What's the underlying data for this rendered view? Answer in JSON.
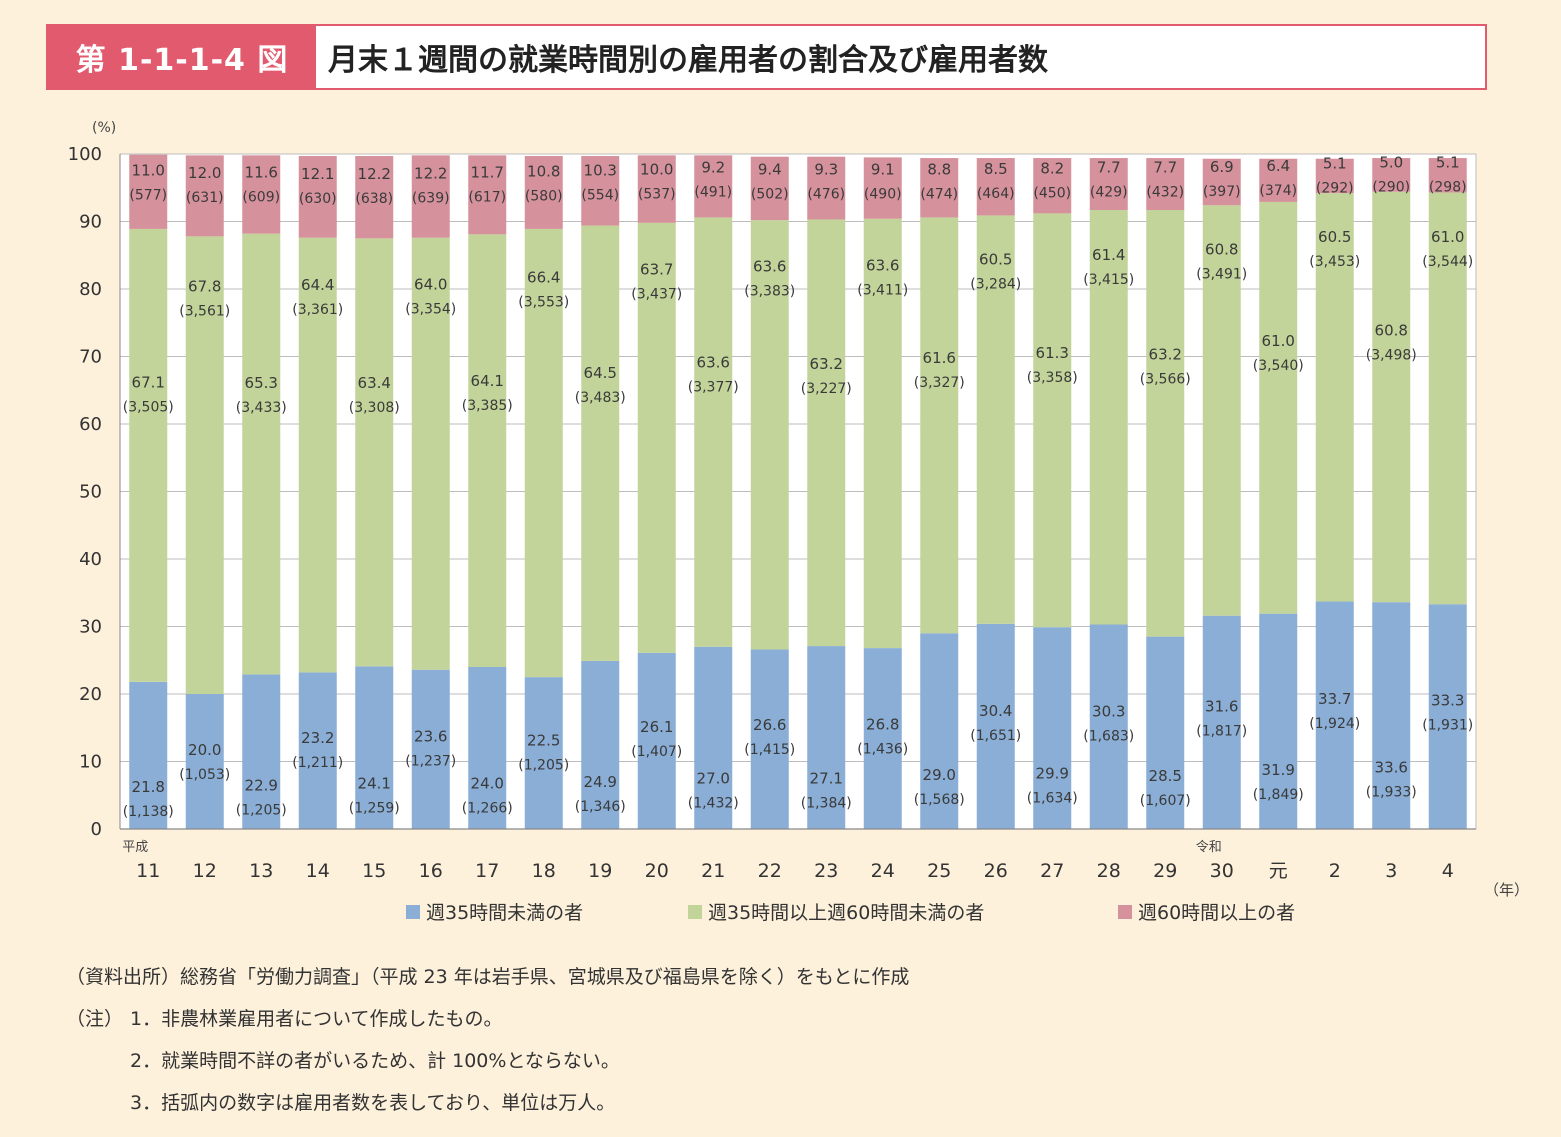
{
  "header": {
    "figure_label": "第 1-1-1-4 図",
    "title": "月末１週間の就業時間別の雇用者の割合及び雇用者数"
  },
  "colors": {
    "under35": "#8aaed6",
    "mid": "#c3d49a",
    "over60": "#d6929c",
    "accent": "#e25a6e"
  },
  "chart_data": {
    "type": "bar",
    "stacked": true,
    "y_unit_label": "(%)",
    "x_unit_label": "（年）",
    "ylim": [
      0,
      100
    ],
    "yticks": [
      0,
      10,
      20,
      30,
      40,
      50,
      60,
      70,
      80,
      90,
      100
    ],
    "era_labels": [
      {
        "at_category": "11",
        "text": "平成"
      },
      {
        "at_category": "30",
        "text": "令和"
      }
    ],
    "categories": [
      "11",
      "12",
      "13",
      "14",
      "15",
      "16",
      "17",
      "18",
      "19",
      "20",
      "21",
      "22",
      "23",
      "24",
      "25",
      "26",
      "27",
      "28",
      "29",
      "30",
      "元",
      "2",
      "3",
      "4"
    ],
    "series": [
      {
        "name": "週35時間未満の者",
        "values": [
          21.8,
          20.0,
          22.9,
          23.2,
          24.1,
          23.6,
          24.0,
          22.5,
          24.9,
          26.1,
          27.0,
          26.6,
          27.1,
          26.8,
          29.0,
          30.4,
          29.9,
          30.3,
          28.5,
          31.6,
          31.9,
          33.7,
          33.6,
          33.3
        ],
        "counts": [
          "1,138",
          "1,053",
          "1,205",
          "1,211",
          "1,259",
          "1,237",
          "1,266",
          "1,205",
          "1,346",
          "1,407",
          "1,432",
          "1,415",
          "1,384",
          "1,436",
          "1,568",
          "1,651",
          "1,634",
          "1,683",
          "1,607",
          "1,817",
          "1,849",
          "1,924",
          "1,933",
          "1,931"
        ]
      },
      {
        "name": "週35時間以上週60時間未満の者",
        "values": [
          67.1,
          67.8,
          65.3,
          64.4,
          63.4,
          64.0,
          64.1,
          66.4,
          64.5,
          63.7,
          63.6,
          63.6,
          63.2,
          63.6,
          61.6,
          60.5,
          61.3,
          61.4,
          63.2,
          60.8,
          61.0,
          60.5,
          60.8,
          61.0
        ],
        "counts": [
          "3,505",
          "3,561",
          "3,433",
          "3,361",
          "3,308",
          "3,354",
          "3,385",
          "3,553",
          "3,483",
          "3,437",
          "3,377",
          "3,383",
          "3,227",
          "3,411",
          "3,327",
          "3,284",
          "3,358",
          "3,415",
          "3,566",
          "3,491",
          "3,540",
          "3,453",
          "3,498",
          "3,544"
        ]
      },
      {
        "name": "週60時間以上の者",
        "values": [
          11.0,
          12.0,
          11.6,
          12.1,
          12.2,
          12.2,
          11.7,
          10.8,
          10.3,
          10.0,
          9.2,
          9.4,
          9.3,
          9.1,
          8.8,
          8.5,
          8.2,
          7.7,
          7.7,
          6.9,
          6.4,
          5.1,
          5.0,
          5.1
        ],
        "counts": [
          "577",
          "631",
          "609",
          "630",
          "638",
          "639",
          "617",
          "580",
          "554",
          "537",
          "491",
          "502",
          "476",
          "490",
          "474",
          "464",
          "450",
          "429",
          "432",
          "397",
          "374",
          "292",
          "290",
          "298"
        ]
      }
    ]
  },
  "notes": {
    "source": "（資料出所）総務省「労働力調査」（平成 23 年は岩手県、宮城県及び福島県を除く）をもとに作成",
    "note_head": "（注）",
    "items": [
      "1．非農林業雇用者について作成したもの。",
      "2．就業時間不詳の者がいるため、計 100%とならない。",
      "3．括弧内の数字は雇用者数を表しており、単位は万人。"
    ]
  }
}
